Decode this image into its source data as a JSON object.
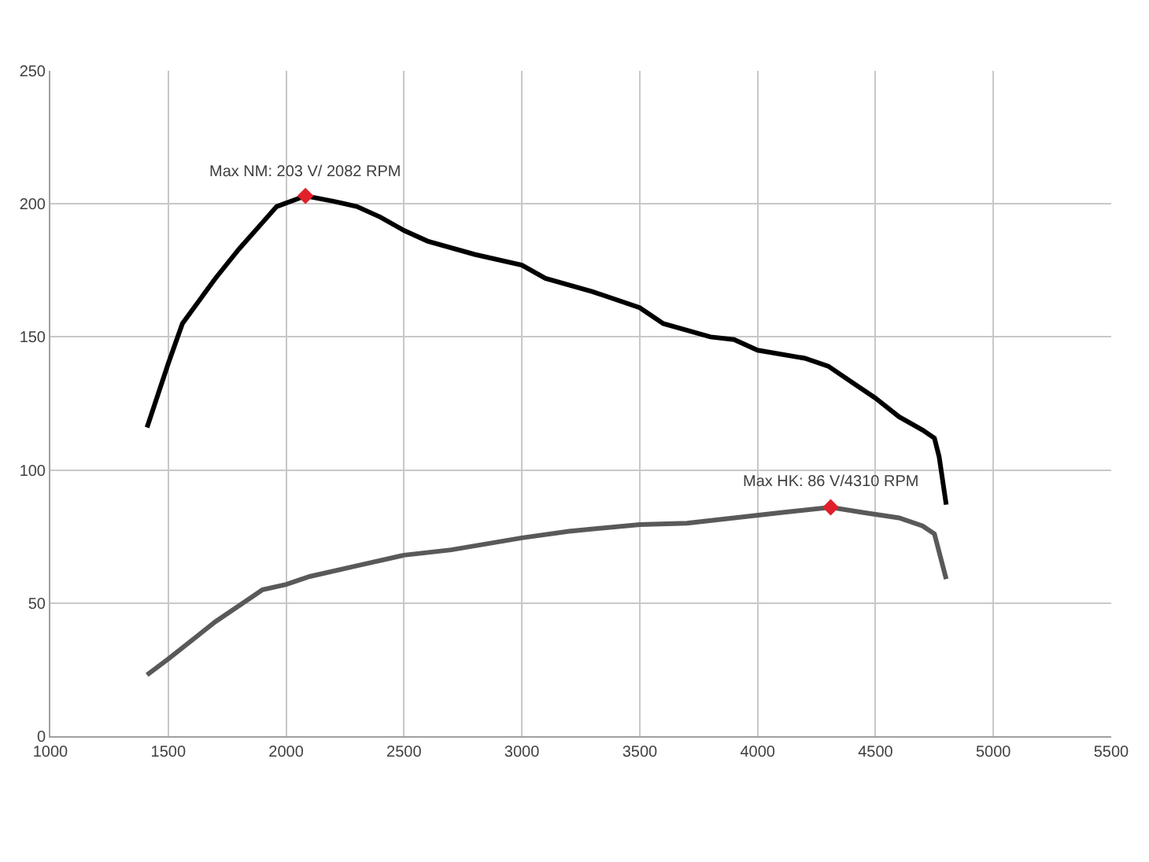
{
  "chart_data": {
    "type": "line",
    "xlim": [
      1000,
      5500
    ],
    "xticks": [
      1000,
      1500,
      2000,
      2500,
      3000,
      3500,
      4000,
      4500,
      5000,
      5500
    ],
    "ylim": [
      0,
      250
    ],
    "yticks": [
      0,
      50,
      100,
      150,
      200,
      250
    ],
    "grid": true,
    "series": [
      {
        "color": "#000000",
        "x": [
          1410,
          1500,
          1560,
          1700,
          1800,
          1900,
          1960,
          2082,
          2200,
          2300,
          2400,
          2500,
          2600,
          2800,
          3000,
          3100,
          3300,
          3500,
          3600,
          3800,
          3900,
          4000,
          4200,
          4300,
          4400,
          4500,
          4600,
          4700,
          4750,
          4770,
          4800
        ],
        "values": [
          116,
          140,
          155,
          172,
          183,
          193,
          199,
          203,
          201,
          199,
          195,
          190,
          186,
          181,
          177,
          172,
          167,
          161,
          155,
          150,
          149,
          145,
          142,
          139,
          133,
          127,
          120,
          115,
          112,
          105,
          87
        ]
      },
      {
        "color": "#595959",
        "x": [
          1410,
          1500,
          1700,
          1900,
          2000,
          2100,
          2300,
          2500,
          2700,
          3000,
          3200,
          3500,
          3700,
          3900,
          4100,
          4310,
          4450,
          4600,
          4700,
          4750,
          4800
        ],
        "values": [
          23,
          29,
          43,
          55,
          57,
          60,
          64,
          68,
          70,
          74.5,
          77,
          79.5,
          80,
          82,
          84,
          86,
          84,
          82,
          79,
          76,
          59
        ]
      },
      {
        "type": "scatter",
        "marker": "diamond",
        "color": "#e0202a",
        "x": [
          2082
        ],
        "values": [
          203
        ]
      },
      {
        "type": "scatter",
        "marker": "diamond",
        "color": "#e0202a",
        "x": [
          4310
        ],
        "values": [
          86
        ]
      }
    ],
    "annotations": [
      {
        "text": "Max NM: 203 V/ 2082 RPM",
        "x": 2082,
        "y": 203
      },
      {
        "text": "Max HK: 86 V/4310 RPM",
        "x": 4310,
        "y": 86
      }
    ]
  }
}
